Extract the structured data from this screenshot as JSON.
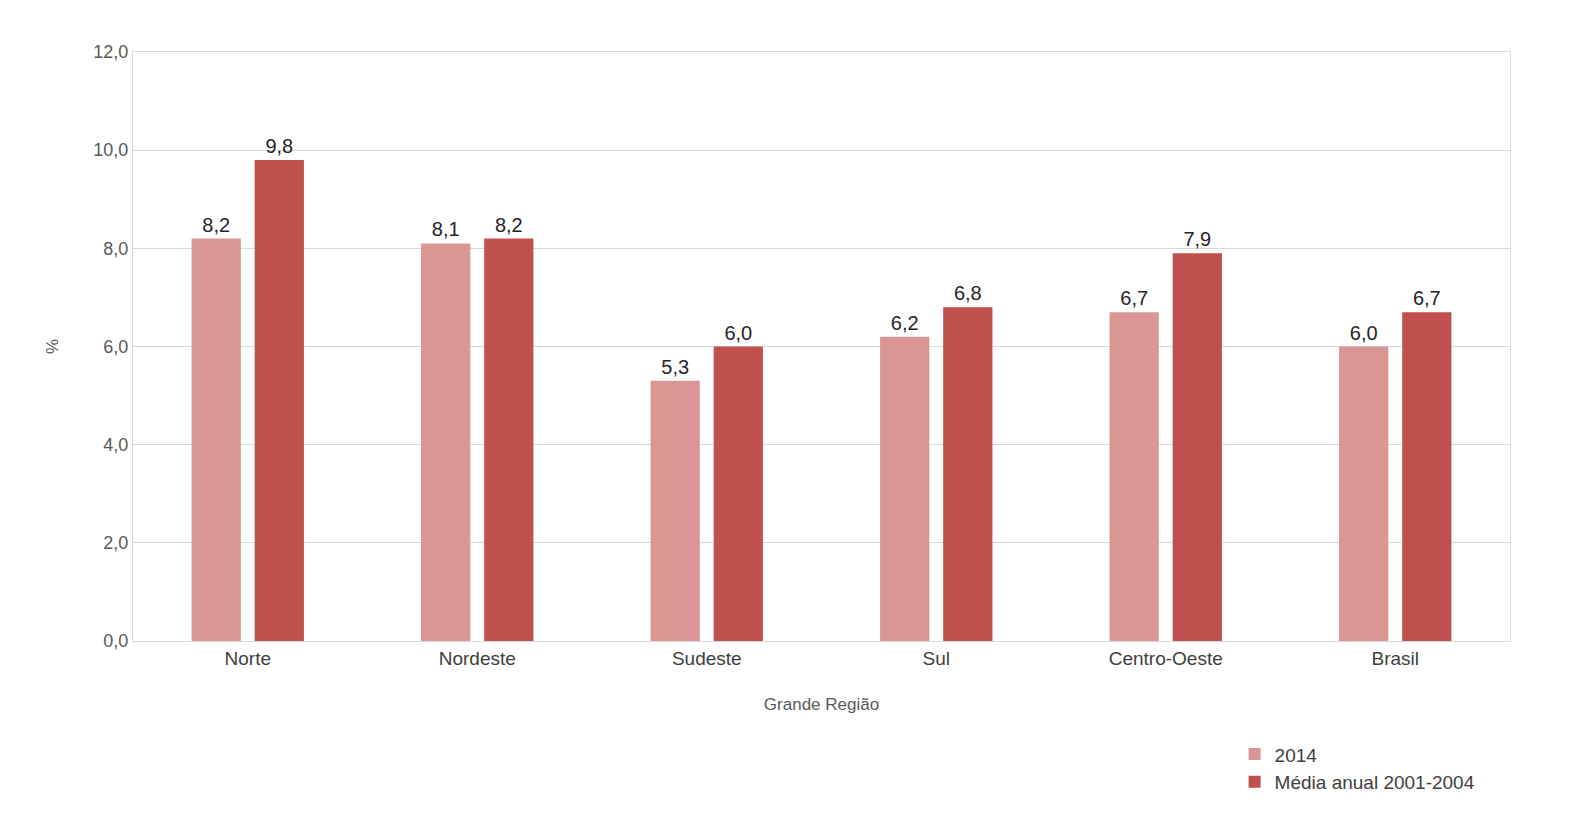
{
  "chart_data": {
    "type": "bar",
    "x_label": "Grande Região",
    "y_label": "%",
    "categories": [
      "Norte",
      "Nordeste",
      "Sudeste",
      "Sul",
      "Centro-Oeste",
      "Brasil"
    ],
    "series": [
      {
        "name": "2014",
        "color": "#d99694",
        "values": [
          8.2,
          8.1,
          5.3,
          6.2,
          6.7,
          6.0
        ],
        "value_labels": [
          "8,2",
          "8,1",
          "5,3",
          "6,2",
          "6,7",
          "6,0"
        ]
      },
      {
        "name": "Média anual 2001-2004",
        "color": "#c0504d",
        "values": [
          9.8,
          8.2,
          6.0,
          6.8,
          7.9,
          6.7
        ],
        "value_labels": [
          "9,8",
          "8,2",
          "6,0",
          "6,8",
          "7,9",
          "6,7"
        ]
      }
    ],
    "ylim": [
      0,
      12
    ],
    "yticks": [
      {
        "value": 0,
        "label": "0,0"
      },
      {
        "value": 2,
        "label": "2,0"
      },
      {
        "value": 4,
        "label": "4,0"
      },
      {
        "value": 6,
        "label": "6,0"
      },
      {
        "value": 8,
        "label": "8,0"
      },
      {
        "value": 10,
        "label": "10,0"
      },
      {
        "value": 12,
        "label": "12,0"
      }
    ],
    "grid": true,
    "legend": "bottom right",
    "data_labels": true
  }
}
